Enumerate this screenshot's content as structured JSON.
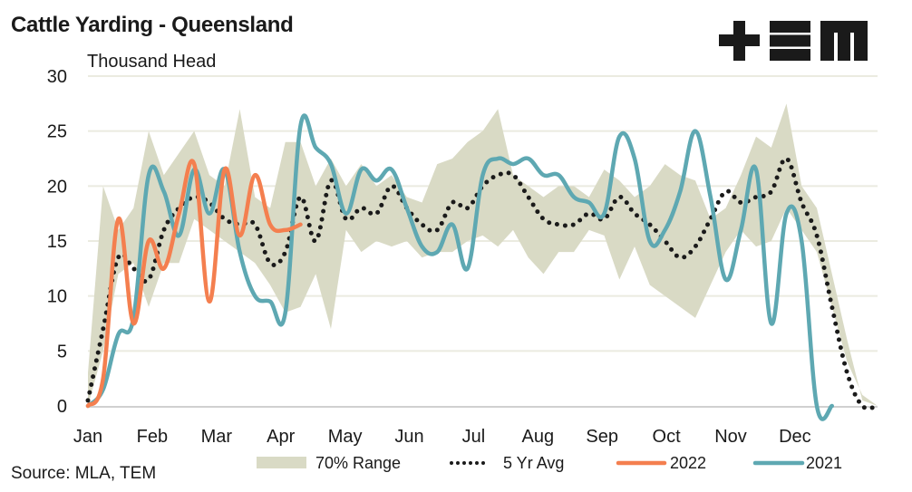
{
  "header": {
    "title": "Cattle Yarding - Queensland",
    "logo_text": "TEM"
  },
  "footer": {
    "source": "Source: MLA, TEM"
  },
  "colors": {
    "range": "#d9dac5",
    "avg": "#1a1a1a",
    "y2022": "#f47f4f",
    "y2021": "#5ea8b2",
    "grid": "#ebebe0",
    "axis": "#d0d0d0"
  },
  "chart_data": {
    "type": "line",
    "title": "Cattle Yarding - Queensland",
    "ylabel": "Thousand Head",
    "xlabel": "",
    "ylim": [
      0,
      30
    ],
    "yticks": [
      0,
      5,
      10,
      15,
      20,
      25,
      30
    ],
    "xtick_labels": [
      "Jan",
      "Feb",
      "Mar",
      "Apr",
      "May",
      "Jun",
      "Jul",
      "Aug",
      "Sep",
      "Oct",
      "Nov",
      "Dec"
    ],
    "x_unit": "week of year",
    "grid": true,
    "legend_position": "bottom",
    "legend": [
      "70% Range",
      "5 Yr Avg",
      "2022",
      "2021"
    ],
    "series": [
      {
        "name": "70% Range",
        "kind": "band",
        "lower": [
          0,
          5,
          12,
          13,
          9,
          13,
          13,
          17,
          16,
          15,
          14,
          13,
          11,
          8.5,
          9,
          12,
          7,
          16,
          14,
          15,
          14.5,
          15,
          13.5,
          14,
          14,
          15,
          15.5,
          14.5,
          16,
          13.5,
          12,
          14,
          14,
          16,
          15.5,
          11.5,
          14.5,
          11,
          10,
          9,
          8,
          11,
          14,
          16,
          14.5,
          15,
          18,
          16,
          14,
          9,
          4,
          1,
          0
        ],
        "upper": [
          3,
          20,
          16,
          18,
          25,
          21,
          23,
          25,
          21,
          20,
          27,
          19,
          18,
          24,
          24,
          20,
          22.5,
          20,
          22,
          20,
          21,
          19,
          18.5,
          22,
          22.5,
          24,
          25,
          27,
          21,
          20,
          19,
          20,
          20,
          19,
          21.5,
          20.5,
          19,
          20,
          22,
          21,
          20.5,
          17,
          18,
          21,
          24.5,
          23.5,
          27.5,
          20,
          18,
          12,
          6,
          0.5,
          0
        ]
      },
      {
        "name": "5 Yr Avg",
        "kind": "dotted",
        "values": [
          0.5,
          7,
          13.5,
          12.5,
          11.5,
          16,
          18,
          19,
          18.5,
          17,
          16.5,
          16.5,
          13,
          14,
          19,
          15,
          20.5,
          17,
          18,
          17.5,
          20,
          18,
          16.5,
          16,
          18.5,
          18,
          20,
          21,
          21,
          19,
          17,
          16.5,
          16.5,
          17.5,
          17,
          19,
          17.5,
          16.5,
          15,
          13.5,
          14.5,
          17,
          19.5,
          18.5,
          19,
          19.5,
          22.5,
          18.5,
          15.5,
          9,
          3,
          0,
          0
        ]
      },
      {
        "name": "2022",
        "kind": "line",
        "values": [
          0,
          2.5,
          17,
          7.5,
          15,
          12.5,
          17.5,
          22,
          9.5,
          21.5,
          15.5,
          21,
          16.5,
          16,
          16.5
        ]
      },
      {
        "name": "2021",
        "kind": "line",
        "values": [
          0,
          1.5,
          6.5,
          8,
          21,
          19.5,
          15.5,
          21.5,
          17.5,
          21.5,
          14,
          10,
          9.5,
          8.5,
          25.5,
          23.5,
          22,
          17.5,
          21.5,
          20.5,
          21.5,
          18,
          14.5,
          14,
          16.5,
          12.5,
          21,
          22.5,
          22,
          22.5,
          21,
          21,
          19,
          18.5,
          17.5,
          24.5,
          22.5,
          15,
          16,
          19.5,
          25,
          19,
          11.5,
          16,
          21.5,
          7.5,
          17.5,
          15,
          0,
          0
        ]
      }
    ]
  }
}
